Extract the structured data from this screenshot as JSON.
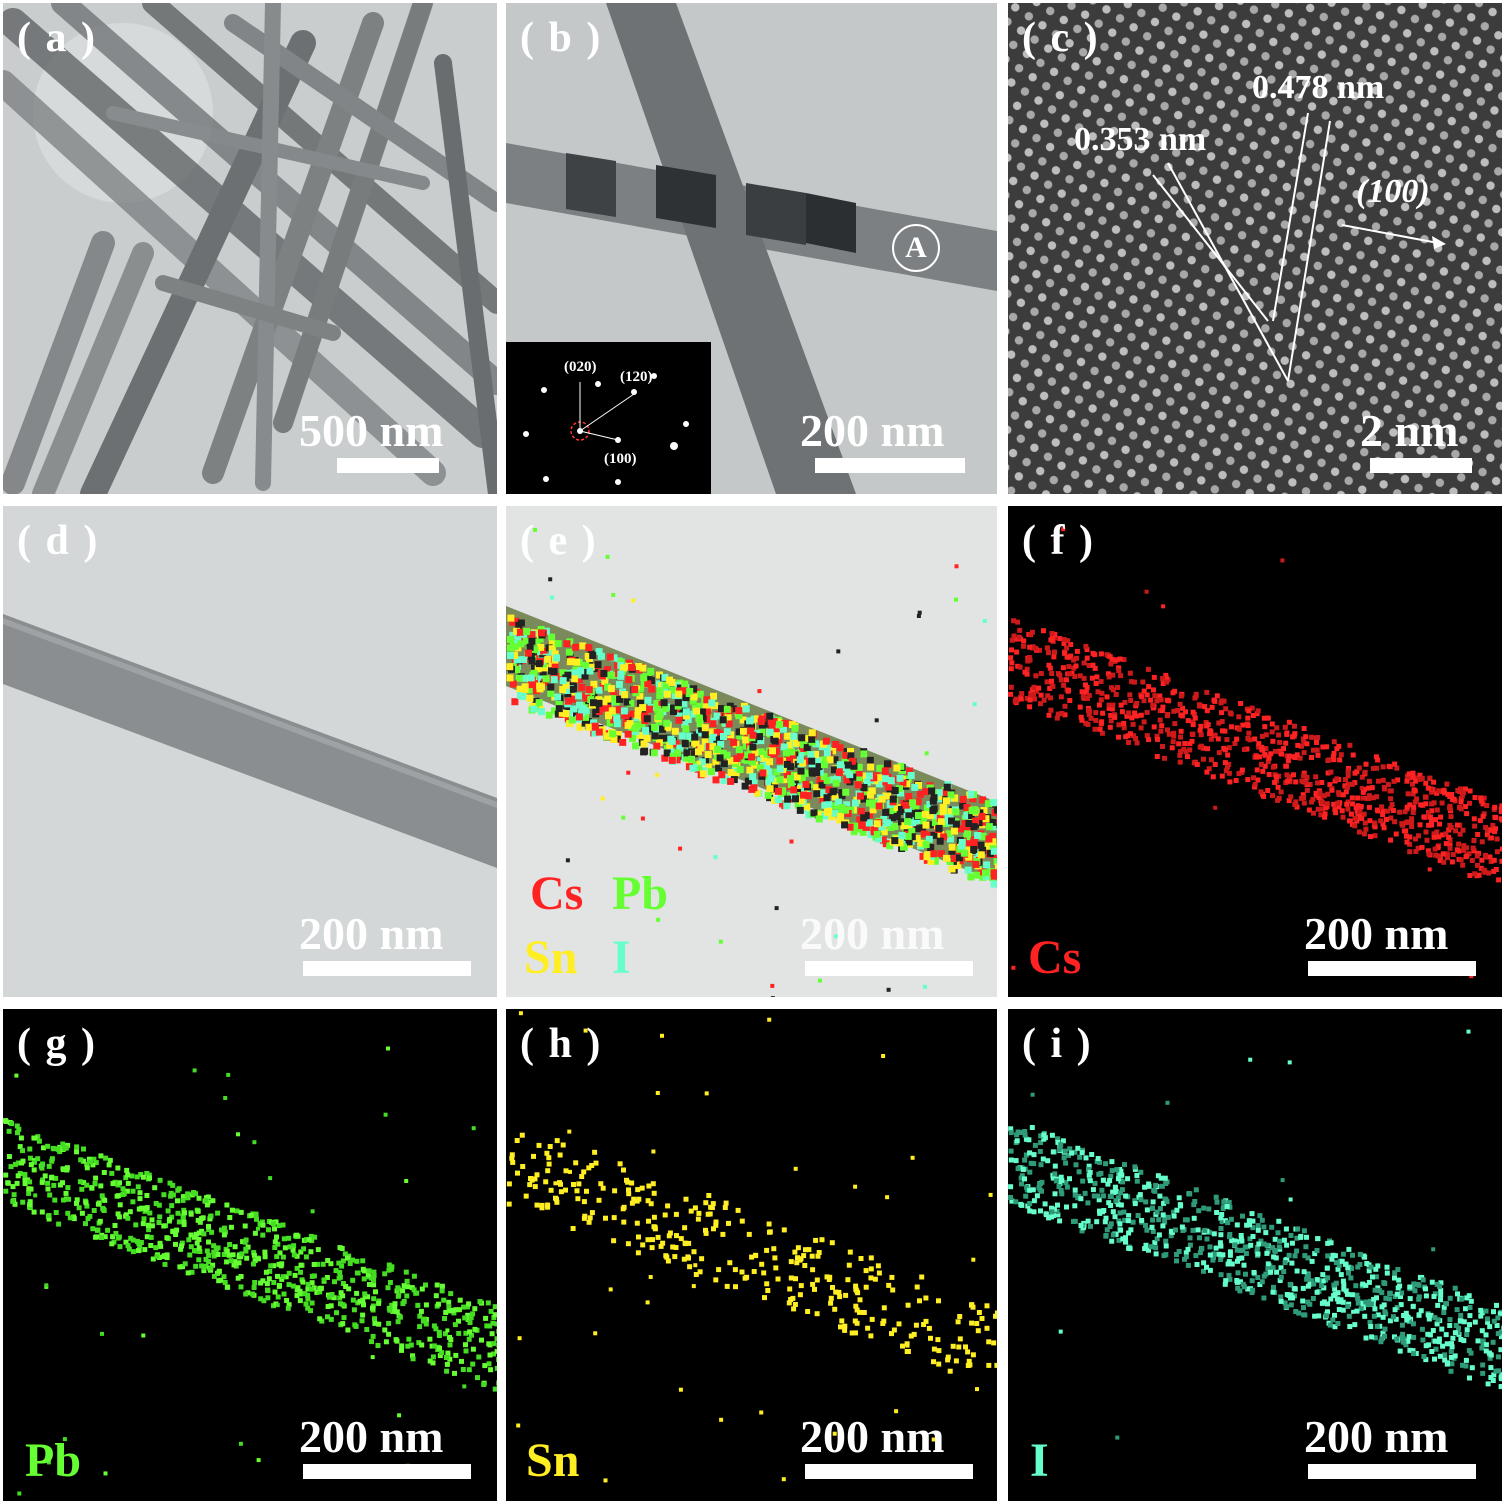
{
  "panels": {
    "a": {
      "label": "( a )",
      "scale": "500 nm"
    },
    "b": {
      "label": "( b )",
      "scale": "200 nm",
      "marker": "A",
      "saed": {
        "s020": "(020)",
        "s120": "(120)",
        "s100": "(100)"
      }
    },
    "c": {
      "label": "( c )",
      "scale": "2 nm",
      "d1": "0.353 nm",
      "d2": "0.478 nm",
      "dir": "(100)"
    },
    "d": {
      "label": "( d )",
      "scale": "200 nm"
    },
    "e": {
      "label": "( e )",
      "scale": "200 nm",
      "cs": "Cs",
      "pb": "Pb",
      "sn": "Sn",
      "i": "I"
    },
    "f": {
      "label": "( f )",
      "scale": "200 nm",
      "element": "Cs"
    },
    "g": {
      "label": "( g )",
      "scale": "200 nm",
      "element": "Pb"
    },
    "h": {
      "label": "( h )",
      "scale": "200 nm",
      "element": "Sn"
    },
    "i": {
      "label": "( i )",
      "scale": "200 nm",
      "element": "I"
    }
  },
  "colors": {
    "cs": "#ff2222",
    "pb": "#66ff33",
    "sn": "#ffee22",
    "i": "#66ffcc"
  }
}
